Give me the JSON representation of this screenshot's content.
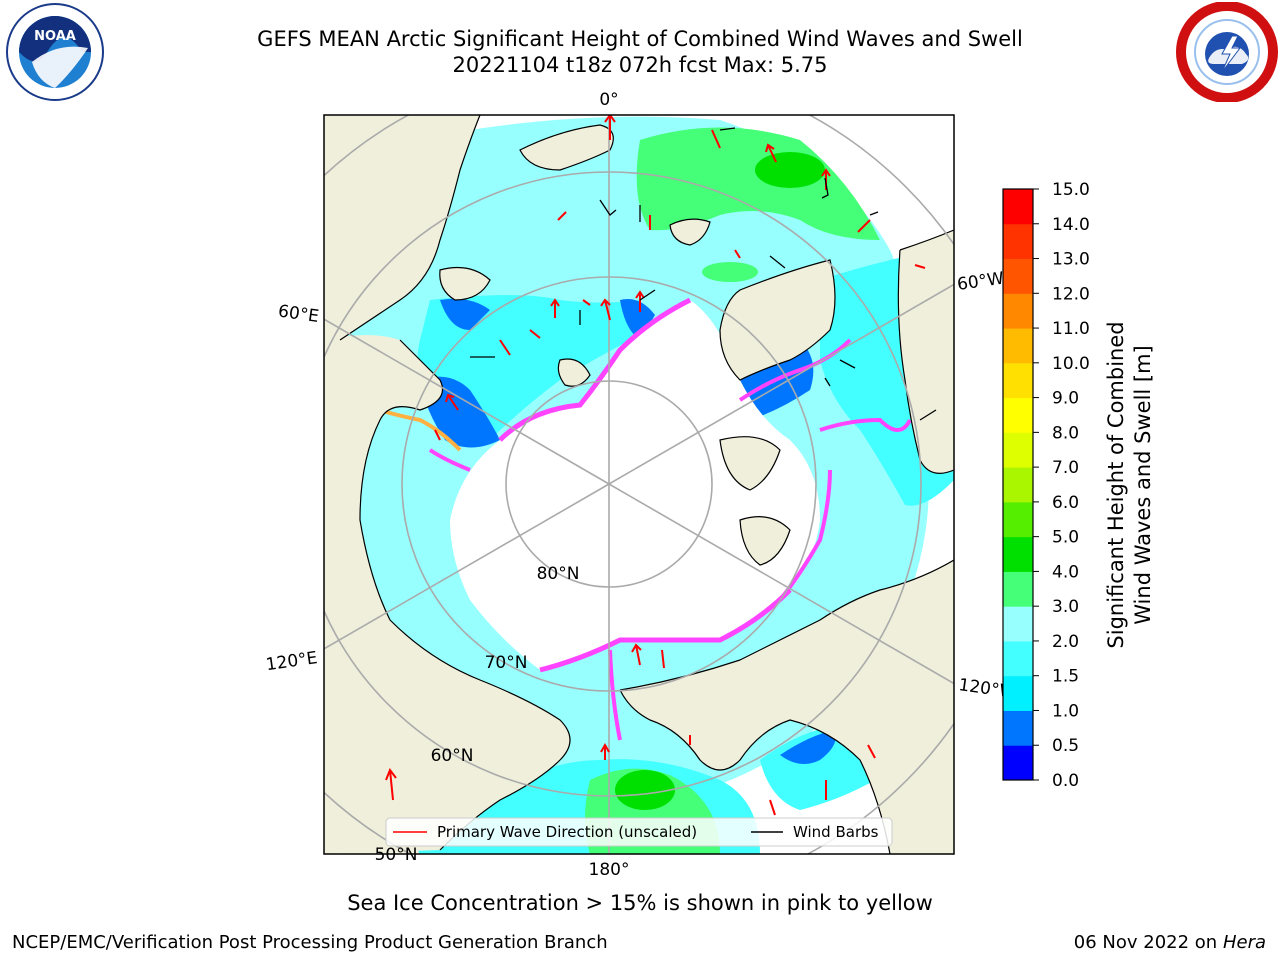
{
  "title_line1": "GEFS MEAN Arctic Significant Height of Combined Wind Waves and Swell",
  "title_line2": "20221104 t18z 072h fcst   Max: 5.75",
  "logos": {
    "left": "noaa-logo",
    "right": "nws-logo"
  },
  "map": {
    "projection": "north-polar-stereographic",
    "lon_labels": [
      "0°",
      "60°W",
      "120°W",
      "180°",
      "120°E",
      "60°E"
    ],
    "lat_labels": [
      "80°N",
      "70°N",
      "60°N",
      "50°N"
    ],
    "legend": {
      "primary_wave": "Primary Wave Direction (unscaled)",
      "wind_barbs": "Wind Barbs",
      "primary_wave_color": "#ff0000",
      "wind_barbs_color": "#000000"
    },
    "land_color": "#efefdc",
    "sea_ice_color": "#ffffff",
    "ice_edge_colors": [
      "#ff44ff",
      "#ffb040"
    ]
  },
  "colorbar": {
    "label_line1": "Significant Height of Combined",
    "label_line2": "Wind Waves and Swell [m]",
    "ticks": [
      "0.0",
      "0.5",
      "1.0",
      "1.5",
      "2.0",
      "3.0",
      "4.0",
      "5.0",
      "6.0",
      "7.0",
      "8.0",
      "9.0",
      "10.0",
      "11.0",
      "12.0",
      "13.0",
      "14.0",
      "15.0"
    ],
    "colors": [
      "#0000ff",
      "#0076ff",
      "#00f0ff",
      "#44ffff",
      "#98ffff",
      "#44ff77",
      "#00e000",
      "#55ee00",
      "#aaf500",
      "#ddff00",
      "#ffff00",
      "#ffe000",
      "#ffbb00",
      "#ff8800",
      "#ff5500",
      "#ff3300",
      "#ff0000"
    ]
  },
  "caption": "Sea Ice Concentration > 15% is shown in pink to yellow",
  "footer": {
    "left": "NCEP/EMC/Verification Post Processing Product Generation Branch",
    "date": "06 Nov 2022 on",
    "machine": "Hera"
  }
}
